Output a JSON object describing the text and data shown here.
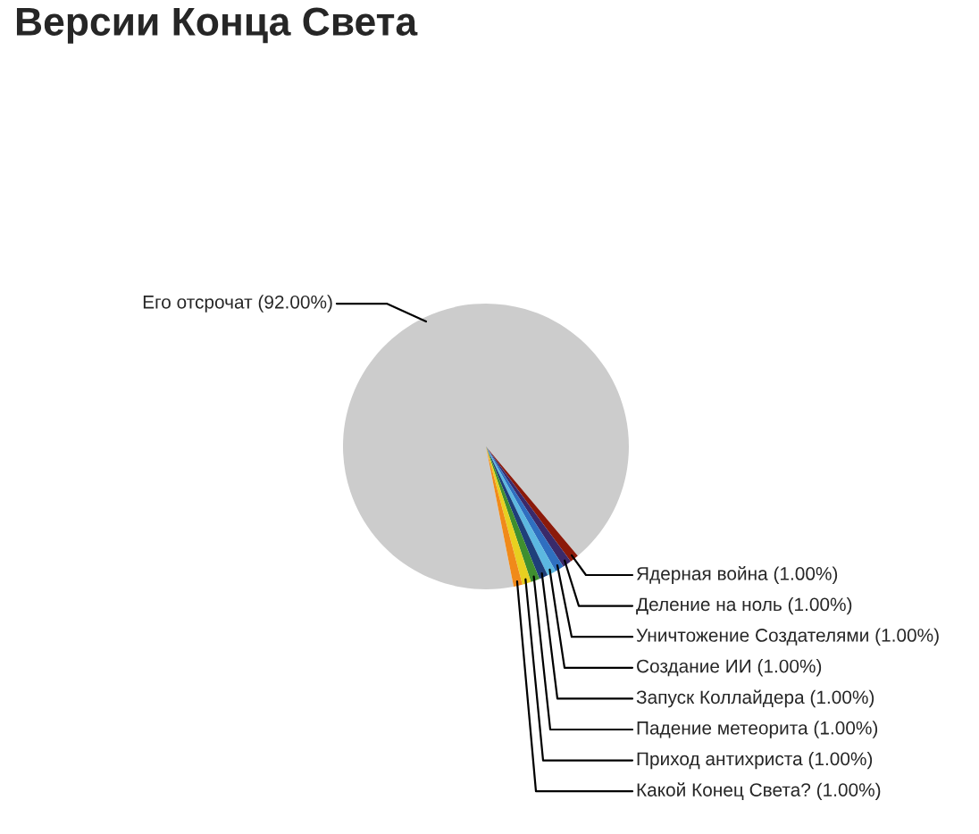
{
  "chart_data": {
    "type": "pie",
    "title": "Версии Конца Света",
    "categories": [
      "Его отсрочат (92.00%)",
      "Ядерная война (1.00%)",
      "Деление на ноль (1.00%)",
      "Уничтожение Создателями (1.00%)",
      "Создание ИИ (1.00%)",
      "Запуск Коллайдера (1.00%)",
      "Падение метеорита (1.00%)",
      "Приход антихриста (1.00%)",
      "Какой Конец Света? (1.00%)"
    ],
    "values": [
      92,
      1,
      1,
      1,
      1,
      1,
      1,
      1,
      1
    ],
    "colors": [
      "#cccccc",
      "#8b1a0a",
      "#3a2a6a",
      "#2f6fc0",
      "#5cb8e0",
      "#1f3f7a",
      "#3f8f2f",
      "#e8d020",
      "#f08a1a"
    ]
  }
}
